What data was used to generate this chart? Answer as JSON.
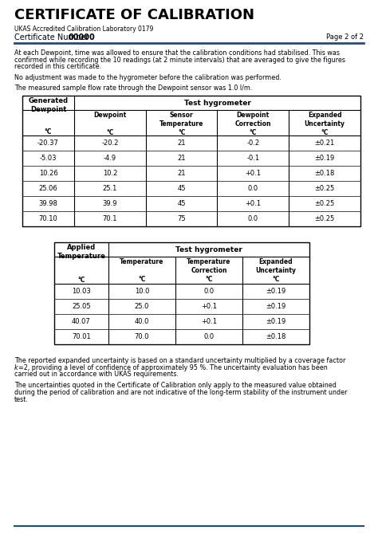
{
  "title": "CERTIFICATE OF CALIBRATION",
  "subtitle": "UKAS Accredited Calibration Laboratory 0179",
  "cert_label": "Certificate Number",
  "cert_number": "00000",
  "page": "Page 2 of 2",
  "para1a": "At each Dewpoint, time was allowed to ensure that the calibration conditions had stabilised. This was",
  "para1b": "confirmed while recording the 10 readings (at 2 minute intervals) that are averaged to give the figures",
  "para1c": "recorded in this certificate.",
  "para2": "No adjustment was made to the hygrometer before the calibration was performed.",
  "para3": "The measured sample flow rate through the Dewpoint sensor was 1.0 l/m.",
  "table1_data": [
    [
      "-20.37",
      "-20.2",
      "21",
      "-0.2",
      "±0.21"
    ],
    [
      "-5.03",
      "-4.9",
      "21",
      "-0.1",
      "±0.19"
    ],
    [
      "10.26",
      "10.2",
      "21",
      "+0.1",
      "±0.18"
    ],
    [
      "25.06",
      "25.1",
      "45",
      "0.0",
      "±0.25"
    ],
    [
      "39.98",
      "39.9",
      "45",
      "+0.1",
      "±0.25"
    ],
    [
      "70.10",
      "70.1",
      "75",
      "0.0",
      "±0.25"
    ]
  ],
  "table2_data": [
    [
      "10.03",
      "10.0",
      "0.0",
      "±0.19"
    ],
    [
      "25.05",
      "25.0",
      "+0.1",
      "±0.19"
    ],
    [
      "40.07",
      "40.0",
      "+0.1",
      "±0.19"
    ],
    [
      "70.01",
      "70.0",
      "0.0",
      "±0.18"
    ]
  ],
  "para4a": "The reported expanded uncertainty is based on a standard uncertainty multiplied by a coverage factor",
  "para4b": "=2, providing a level of confidence of approximately 95 %. The uncertainty evaluation has been",
  "para4c": "carried out in accordance with UKAS requirements.",
  "para5a": "The uncertainties quoted in the Certificate of Calibration only apply to the measured value obtained",
  "para5b": "during the period of calibration and are not indicative of the long-term stability of the instrument under",
  "para5c": "test.",
  "bg_color": "#ffffff",
  "title_color": "#000000",
  "line_color": "#1a4d8f",
  "text_color": "#000000"
}
